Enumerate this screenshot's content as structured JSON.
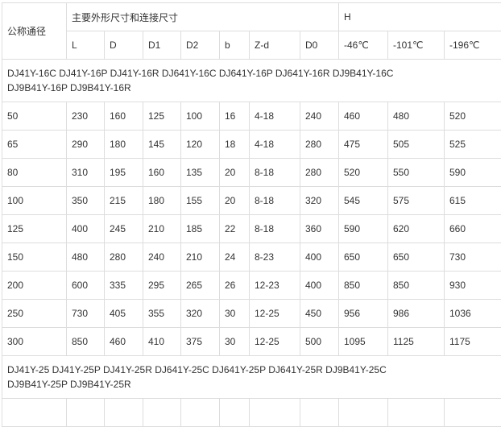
{
  "header": {
    "nominal": "公称通径",
    "main_dims": "主要外形尺寸和连接尺寸",
    "h": "H",
    "cols": [
      "L",
      "D",
      "D1",
      "D2",
      "b",
      "Z-d",
      "D0",
      "-46℃",
      "-101℃",
      "-196℃"
    ]
  },
  "groups": [
    {
      "models": "DJ41Y-16C DJ41Y-16P DJ41Y-16R DJ641Y-16C DJ641Y-16P DJ641Y-16R DJ9B41Y-16C DJ9B41Y-16P DJ9B41Y-16R",
      "rows": [
        [
          "50",
          "230",
          "160",
          "125",
          "100",
          "16",
          "4-18",
          "240",
          "460",
          "480",
          "520"
        ],
        [
          "65",
          "290",
          "180",
          "145",
          "120",
          "18",
          "4-18",
          "280",
          "475",
          "505",
          "525"
        ],
        [
          "80",
          "310",
          "195",
          "160",
          "135",
          "20",
          "8-18",
          "280",
          "520",
          "550",
          "590"
        ],
        [
          "100",
          "350",
          "215",
          "180",
          "155",
          "20",
          "8-18",
          "320",
          "545",
          "575",
          "615"
        ],
        [
          "125",
          "400",
          "245",
          "210",
          "185",
          "22",
          "8-18",
          "360",
          "590",
          "620",
          "660"
        ],
        [
          "150",
          "480",
          "280",
          "240",
          "210",
          "24",
          "8-23",
          "400",
          "650",
          "650",
          "730"
        ],
        [
          "200",
          "600",
          "335",
          "295",
          "265",
          "26",
          "12-23",
          "400",
          "850",
          "850",
          "930"
        ],
        [
          "250",
          "730",
          "405",
          "355",
          "320",
          "30",
          "12-25",
          "450",
          "956",
          "986",
          "1036"
        ],
        [
          "300",
          "850",
          "460",
          "410",
          "375",
          "30",
          "12-25",
          "500",
          "1095",
          "1125",
          "1175"
        ]
      ]
    },
    {
      "models": "DJ41Y-25 DJ41Y-25P DJ41Y-25R DJ641Y-25C DJ641Y-25P DJ641Y-25R DJ9B41Y-25C DJ9B41Y-25P DJ9B41Y-25R",
      "rows": []
    }
  ]
}
